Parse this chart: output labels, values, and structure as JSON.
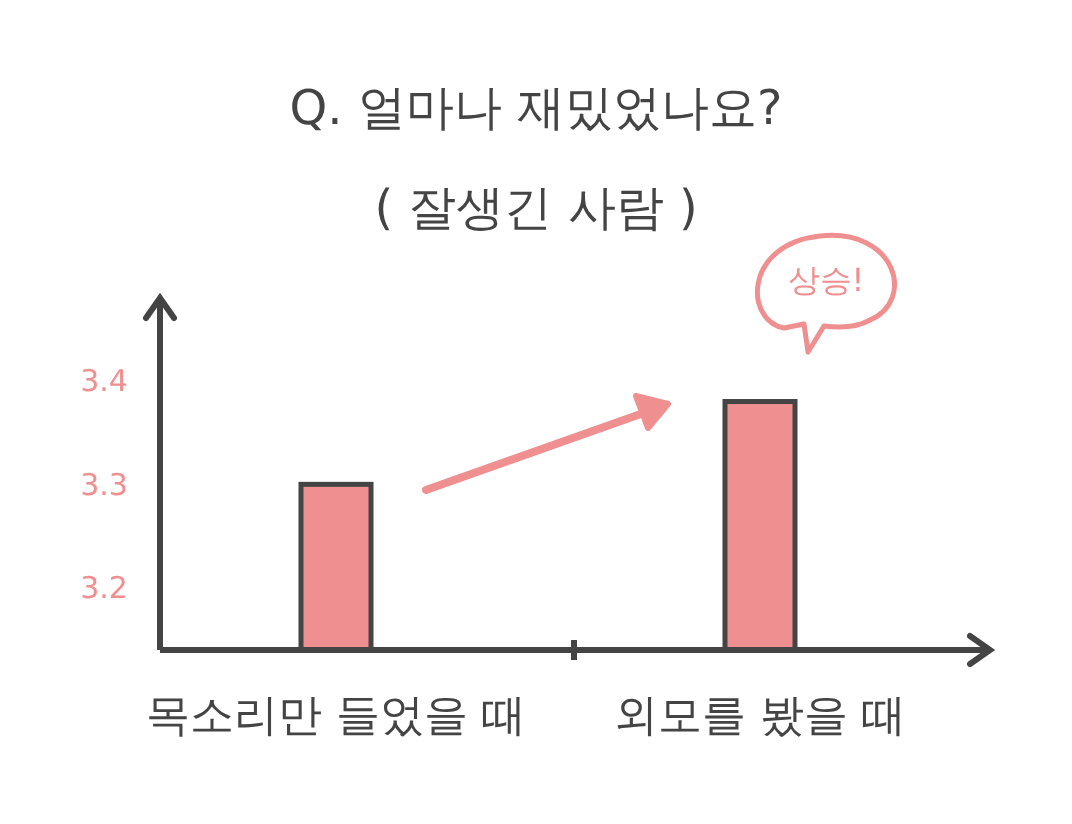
{
  "chart_data": {
    "type": "bar",
    "title": "Q. 얼마나 재밌었나요?",
    "subtitle": "( 잘생긴 사람 )",
    "categories": [
      "목소리만 들었을 때",
      "외모를 봤을 때"
    ],
    "values": [
      3.3,
      3.38
    ],
    "color": "#f08f8f",
    "ylim": [
      3.14,
      3.48
    ],
    "yticks": [
      3.2,
      3.3,
      3.4
    ],
    "annotations": [
      "상승!"
    ]
  }
}
